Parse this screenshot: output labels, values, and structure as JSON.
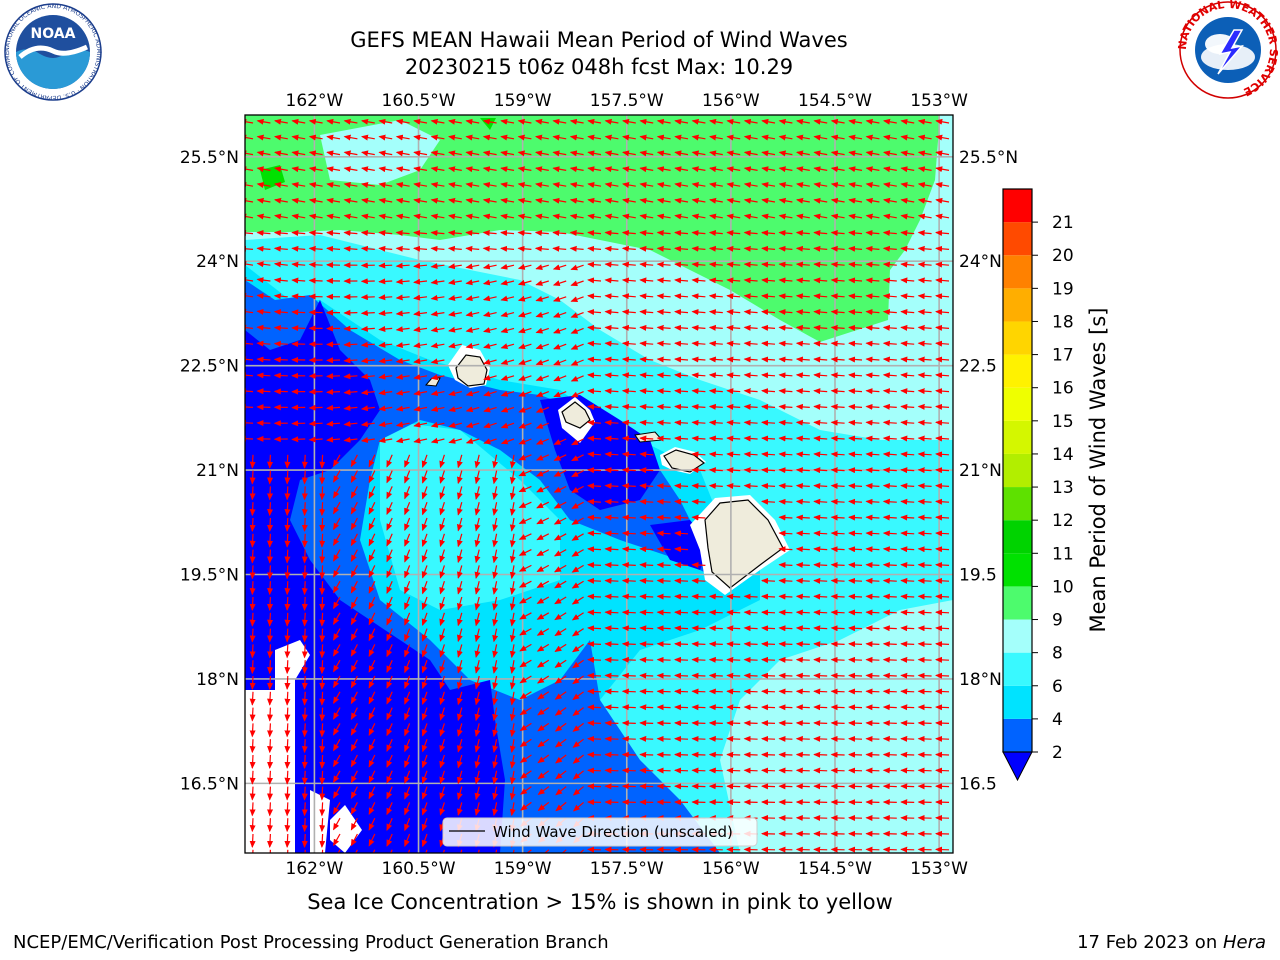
{
  "header": {
    "title_line1": "GEFS MEAN Hawaii Mean Period of Wind Waves",
    "title_line2": "20230215 t06z 048h fcst   Max: 10.29"
  },
  "map": {
    "lon_ticks": [
      "162°W",
      "160.5°W",
      "159°W",
      "157.5°W",
      "156°W",
      "154.5°W",
      "153°W"
    ],
    "lat_ticks": [
      "16.5°N",
      "18°N",
      "19.5°N",
      "21°N",
      "22.5°N",
      "24°N",
      "25.5°N"
    ],
    "lat_ticks_right": [
      "16.5",
      "18°N",
      "19.5",
      "21°N",
      "22.5",
      "24°N",
      "25.5°N"
    ],
    "lon_range": [
      -163,
      -152.8
    ],
    "lat_range": [
      15.5,
      26.1
    ],
    "legend_label": "Wind Wave Direction (unscaled)",
    "arrow_color": "#ff0000",
    "land_color": "#efecdc"
  },
  "colorbar": {
    "label": "Mean Period of Wind Waves [s]",
    "ticks": [
      "2",
      "4",
      "6",
      "8",
      "9",
      "10",
      "11",
      "12",
      "13",
      "14",
      "15",
      "16",
      "17",
      "18",
      "19",
      "20",
      "21"
    ],
    "colors": [
      "#0063ff",
      "#00e3ff",
      "#39f9ff",
      "#a4fffb",
      "#4dfb6d",
      "#00e100",
      "#00d300",
      "#5ee100",
      "#b2ee00",
      "#d4f700",
      "#efff00",
      "#fff200",
      "#ffd500",
      "#ffae00",
      "#ff8100",
      "#ff4a00",
      "#ff0000"
    ],
    "extend_color": "#0000ff"
  },
  "subtitle": "Sea Ice Concentration > 15% is shown in pink to yellow",
  "footer": {
    "left": "NCEP/EMC/Verification Post Processing Product Generation Branch",
    "date": "17 Feb 2023 on ",
    "host": "Hera"
  },
  "logos": {
    "noaa": "NOAA",
    "noaa_ring": "NATIONAL OCEANIC AND ATMOSPHERIC ADMINISTRATION · U.S. DEPARTMENT OF COMMERCE",
    "nws_ring": "NATIONAL WEATHER SERVICE"
  }
}
